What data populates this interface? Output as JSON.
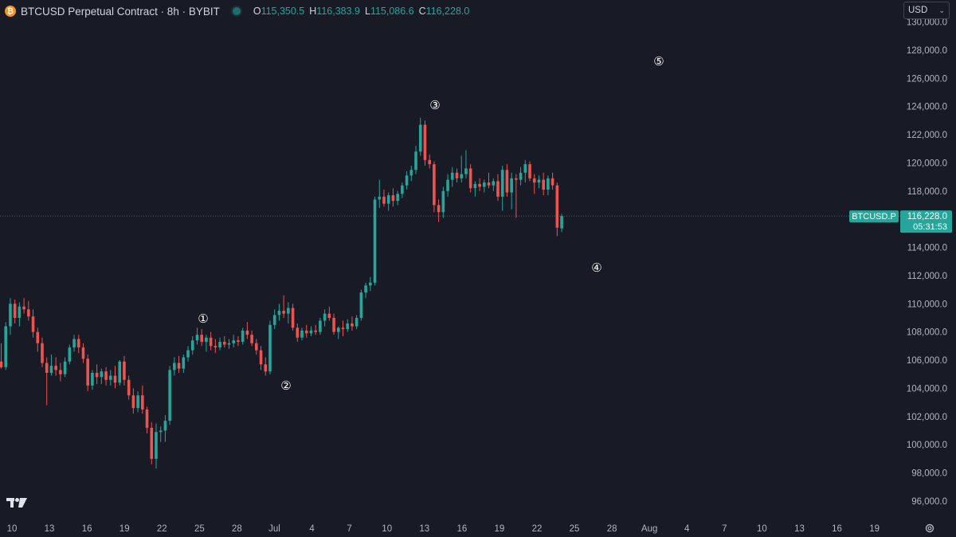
{
  "header": {
    "exchange_icon": "bitcoin-icon",
    "title": "BTCUSD Perpetual Contract · 8h · BYBIT",
    "ohlc": {
      "open_label": "O",
      "open": "115,350.5",
      "high_label": "H",
      "high": "116,383.9",
      "low_label": "L",
      "low": "115,086.6",
      "close_label": "C",
      "close": "116,228.0"
    }
  },
  "currency_select": {
    "value": "USD"
  },
  "price_axis": {
    "ticks": [
      "130,000.0",
      "128,000.0",
      "126,000.0",
      "124,000.0",
      "122,000.0",
      "120,000.0",
      "118,000.0",
      "116,000.0",
      "114,000.0",
      "112,000.0",
      "110,000.0",
      "108,000.0",
      "106,000.0",
      "104,000.0",
      "102,000.0",
      "100,000.0",
      "98,000.0",
      "96,000.0"
    ],
    "last_price_label": {
      "symbol": "BTCUSD.P",
      "price": "116,228.0",
      "countdown": "05:31:53"
    }
  },
  "time_axis": {
    "labels": [
      "10",
      "13",
      "16",
      "19",
      "22",
      "25",
      "28",
      "Jul",
      "4",
      "7",
      "10",
      "13",
      "16",
      "19",
      "22",
      "25",
      "28",
      "Aug",
      "4",
      "7",
      "10",
      "13",
      "16",
      "19"
    ]
  },
  "annotations": [
    "①",
    "②",
    "③",
    "④",
    "⑤"
  ],
  "colors": {
    "background": "#181a25",
    "up": "#26a69a",
    "down": "#ef5350",
    "text": "#d1d4dc",
    "grid_text": "#b2b5be"
  },
  "chart_data": {
    "type": "candlestick",
    "symbol": "BTCUSD.P",
    "timeframe": "8h",
    "ylim": [
      95000,
      130500
    ],
    "last_close": 116228.0,
    "candles": [
      {
        "o": 105900,
        "h": 107200,
        "l": 105400,
        "c": 105500
      },
      {
        "o": 105500,
        "h": 108700,
        "l": 105300,
        "c": 108400
      },
      {
        "o": 108400,
        "h": 110400,
        "l": 107800,
        "c": 110000
      },
      {
        "o": 110000,
        "h": 110300,
        "l": 108600,
        "c": 109000
      },
      {
        "o": 109000,
        "h": 110100,
        "l": 108400,
        "c": 109800
      },
      {
        "o": 109800,
        "h": 110400,
        "l": 109300,
        "c": 109600
      },
      {
        "o": 109600,
        "h": 110200,
        "l": 108800,
        "c": 109100
      },
      {
        "o": 109100,
        "h": 109600,
        "l": 107600,
        "c": 108000
      },
      {
        "o": 108000,
        "h": 108300,
        "l": 106600,
        "c": 107200
      },
      {
        "o": 107200,
        "h": 107600,
        "l": 105500,
        "c": 105800
      },
      {
        "o": 105800,
        "h": 106200,
        "l": 102800,
        "c": 105100
      },
      {
        "o": 105100,
        "h": 106400,
        "l": 104900,
        "c": 105600
      },
      {
        "o": 105600,
        "h": 106200,
        "l": 104900,
        "c": 105300
      },
      {
        "o": 105300,
        "h": 105800,
        "l": 104500,
        "c": 105000
      },
      {
        "o": 105000,
        "h": 106200,
        "l": 104800,
        "c": 105900
      },
      {
        "o": 105900,
        "h": 107100,
        "l": 105700,
        "c": 106900
      },
      {
        "o": 106900,
        "h": 107800,
        "l": 106600,
        "c": 107500
      },
      {
        "o": 107500,
        "h": 107800,
        "l": 106500,
        "c": 106900
      },
      {
        "o": 106900,
        "h": 107200,
        "l": 105800,
        "c": 106100
      },
      {
        "o": 106100,
        "h": 106400,
        "l": 103800,
        "c": 104200
      },
      {
        "o": 104200,
        "h": 105300,
        "l": 103900,
        "c": 105100
      },
      {
        "o": 105100,
        "h": 105700,
        "l": 104300,
        "c": 104800
      },
      {
        "o": 104800,
        "h": 105400,
        "l": 104300,
        "c": 105200
      },
      {
        "o": 105200,
        "h": 105500,
        "l": 104200,
        "c": 104600
      },
      {
        "o": 104600,
        "h": 105300,
        "l": 104200,
        "c": 104900
      },
      {
        "o": 104900,
        "h": 105600,
        "l": 104000,
        "c": 104400
      },
      {
        "o": 104400,
        "h": 106000,
        "l": 104200,
        "c": 105900
      },
      {
        "o": 105900,
        "h": 106300,
        "l": 104200,
        "c": 104600
      },
      {
        "o": 104600,
        "h": 104900,
        "l": 103200,
        "c": 103500
      },
      {
        "o": 103500,
        "h": 104000,
        "l": 102200,
        "c": 102600
      },
      {
        "o": 102600,
        "h": 103800,
        "l": 102300,
        "c": 103500
      },
      {
        "o": 103500,
        "h": 104200,
        "l": 102200,
        "c": 102500
      },
      {
        "o": 102500,
        "h": 102700,
        "l": 100800,
        "c": 101200
      },
      {
        "o": 101200,
        "h": 101600,
        "l": 98600,
        "c": 99000
      },
      {
        "o": 99000,
        "h": 101500,
        "l": 98300,
        "c": 100900
      },
      {
        "o": 100900,
        "h": 101300,
        "l": 100200,
        "c": 101000
      },
      {
        "o": 101000,
        "h": 102100,
        "l": 100200,
        "c": 101700
      },
      {
        "o": 101700,
        "h": 105600,
        "l": 101400,
        "c": 105300
      },
      {
        "o": 105300,
        "h": 106200,
        "l": 104900,
        "c": 105800
      },
      {
        "o": 105800,
        "h": 106300,
        "l": 105100,
        "c": 105400
      },
      {
        "o": 105400,
        "h": 106400,
        "l": 105100,
        "c": 106200
      },
      {
        "o": 106200,
        "h": 107000,
        "l": 105900,
        "c": 106700
      },
      {
        "o": 106700,
        "h": 107700,
        "l": 106400,
        "c": 107400
      },
      {
        "o": 107400,
        "h": 108300,
        "l": 107100,
        "c": 107800
      },
      {
        "o": 107800,
        "h": 108200,
        "l": 107000,
        "c": 107300
      },
      {
        "o": 107300,
        "h": 107800,
        "l": 106600,
        "c": 107600
      },
      {
        "o": 107600,
        "h": 108000,
        "l": 106700,
        "c": 107000
      },
      {
        "o": 107000,
        "h": 107500,
        "l": 106500,
        "c": 106900
      },
      {
        "o": 106900,
        "h": 107600,
        "l": 106700,
        "c": 107300
      },
      {
        "o": 107300,
        "h": 107700,
        "l": 106900,
        "c": 107100
      },
      {
        "o": 107100,
        "h": 107500,
        "l": 106800,
        "c": 107200
      },
      {
        "o": 107200,
        "h": 107800,
        "l": 106900,
        "c": 107400
      },
      {
        "o": 107400,
        "h": 107700,
        "l": 107000,
        "c": 107300
      },
      {
        "o": 107300,
        "h": 108300,
        "l": 107100,
        "c": 108100
      },
      {
        "o": 108100,
        "h": 108700,
        "l": 107500,
        "c": 107800
      },
      {
        "o": 107800,
        "h": 108100,
        "l": 107000,
        "c": 107200
      },
      {
        "o": 107200,
        "h": 107500,
        "l": 106400,
        "c": 106700
      },
      {
        "o": 106700,
        "h": 107000,
        "l": 105300,
        "c": 105700
      },
      {
        "o": 105700,
        "h": 106200,
        "l": 104900,
        "c": 105200
      },
      {
        "o": 105200,
        "h": 108800,
        "l": 105000,
        "c": 108500
      },
      {
        "o": 108500,
        "h": 109600,
        "l": 108200,
        "c": 109200
      },
      {
        "o": 109200,
        "h": 110000,
        "l": 108800,
        "c": 109500
      },
      {
        "o": 109500,
        "h": 110600,
        "l": 109000,
        "c": 109300
      },
      {
        "o": 109300,
        "h": 110100,
        "l": 108600,
        "c": 109700
      },
      {
        "o": 109700,
        "h": 110000,
        "l": 108100,
        "c": 108300
      },
      {
        "o": 108300,
        "h": 108600,
        "l": 107300,
        "c": 107600
      },
      {
        "o": 107600,
        "h": 108300,
        "l": 107400,
        "c": 108100
      },
      {
        "o": 108100,
        "h": 108500,
        "l": 107600,
        "c": 107900
      },
      {
        "o": 107900,
        "h": 108400,
        "l": 107700,
        "c": 108100
      },
      {
        "o": 108100,
        "h": 108500,
        "l": 107800,
        "c": 108000
      },
      {
        "o": 108000,
        "h": 109000,
        "l": 107800,
        "c": 108800
      },
      {
        "o": 108800,
        "h": 109600,
        "l": 108400,
        "c": 109300
      },
      {
        "o": 109300,
        "h": 109800,
        "l": 108800,
        "c": 109000
      },
      {
        "o": 109000,
        "h": 109300,
        "l": 107800,
        "c": 108000
      },
      {
        "o": 108000,
        "h": 108400,
        "l": 107500,
        "c": 108300
      },
      {
        "o": 108300,
        "h": 108800,
        "l": 107700,
        "c": 108200
      },
      {
        "o": 108200,
        "h": 108900,
        "l": 108000,
        "c": 108600
      },
      {
        "o": 108600,
        "h": 109100,
        "l": 108100,
        "c": 108400
      },
      {
        "o": 108400,
        "h": 109200,
        "l": 108200,
        "c": 109000
      },
      {
        "o": 109000,
        "h": 111000,
        "l": 108800,
        "c": 110800
      },
      {
        "o": 110800,
        "h": 111500,
        "l": 110400,
        "c": 111300
      },
      {
        "o": 111300,
        "h": 111900,
        "l": 110900,
        "c": 111500
      },
      {
        "o": 111500,
        "h": 117600,
        "l": 111300,
        "c": 117400
      },
      {
        "o": 117400,
        "h": 118800,
        "l": 116800,
        "c": 117600
      },
      {
        "o": 117600,
        "h": 118100,
        "l": 116900,
        "c": 117100
      },
      {
        "o": 117100,
        "h": 117900,
        "l": 116600,
        "c": 117700
      },
      {
        "o": 117700,
        "h": 118200,
        "l": 116900,
        "c": 117300
      },
      {
        "o": 117300,
        "h": 118000,
        "l": 117000,
        "c": 117800
      },
      {
        "o": 117800,
        "h": 118600,
        "l": 117500,
        "c": 118400
      },
      {
        "o": 118400,
        "h": 119400,
        "l": 118100,
        "c": 119100
      },
      {
        "o": 119100,
        "h": 119800,
        "l": 118700,
        "c": 119500
      },
      {
        "o": 119500,
        "h": 121200,
        "l": 119200,
        "c": 120800
      },
      {
        "o": 120800,
        "h": 123200,
        "l": 120500,
        "c": 122700
      },
      {
        "o": 122700,
        "h": 123000,
        "l": 119800,
        "c": 120200
      },
      {
        "o": 120200,
        "h": 120600,
        "l": 119600,
        "c": 119900
      },
      {
        "o": 119900,
        "h": 120100,
        "l": 116500,
        "c": 117000
      },
      {
        "o": 117000,
        "h": 117400,
        "l": 115800,
        "c": 116500
      },
      {
        "o": 116500,
        "h": 118300,
        "l": 116100,
        "c": 118000
      },
      {
        "o": 118000,
        "h": 119200,
        "l": 117600,
        "c": 118800
      },
      {
        "o": 118800,
        "h": 119700,
        "l": 118300,
        "c": 119300
      },
      {
        "o": 119300,
        "h": 119600,
        "l": 118600,
        "c": 118900
      },
      {
        "o": 118900,
        "h": 120500,
        "l": 118600,
        "c": 119200
      },
      {
        "o": 119200,
        "h": 120900,
        "l": 118900,
        "c": 119600
      },
      {
        "o": 119600,
        "h": 119900,
        "l": 117900,
        "c": 118200
      },
      {
        "o": 118200,
        "h": 118700,
        "l": 117600,
        "c": 118500
      },
      {
        "o": 118500,
        "h": 118900,
        "l": 118000,
        "c": 118300
      },
      {
        "o": 118300,
        "h": 118800,
        "l": 117900,
        "c": 118600
      },
      {
        "o": 118600,
        "h": 119300,
        "l": 118200,
        "c": 118400
      },
      {
        "o": 118400,
        "h": 118900,
        "l": 118000,
        "c": 118700
      },
      {
        "o": 118700,
        "h": 119200,
        "l": 117300,
        "c": 117600
      },
      {
        "o": 117600,
        "h": 119800,
        "l": 116600,
        "c": 119500
      },
      {
        "o": 119500,
        "h": 119900,
        "l": 117600,
        "c": 117900
      },
      {
        "o": 117900,
        "h": 119300,
        "l": 116700,
        "c": 118900
      },
      {
        "o": 118900,
        "h": 119200,
        "l": 116100,
        "c": 118800
      },
      {
        "o": 118800,
        "h": 119700,
        "l": 118400,
        "c": 119300
      },
      {
        "o": 119300,
        "h": 120200,
        "l": 118600,
        "c": 119900
      },
      {
        "o": 119900,
        "h": 120100,
        "l": 118700,
        "c": 118900
      },
      {
        "o": 118900,
        "h": 119200,
        "l": 117800,
        "c": 118600
      },
      {
        "o": 118600,
        "h": 119100,
        "l": 118200,
        "c": 118800
      },
      {
        "o": 118800,
        "h": 119300,
        "l": 117700,
        "c": 118100
      },
      {
        "o": 118100,
        "h": 119100,
        "l": 117700,
        "c": 118900
      },
      {
        "o": 118900,
        "h": 119300,
        "l": 118100,
        "c": 118400
      },
      {
        "o": 118400,
        "h": 118600,
        "l": 114800,
        "c": 115400
      },
      {
        "o": 115350.5,
        "h": 116383.9,
        "l": 115086.6,
        "c": 116228.0
      }
    ]
  }
}
